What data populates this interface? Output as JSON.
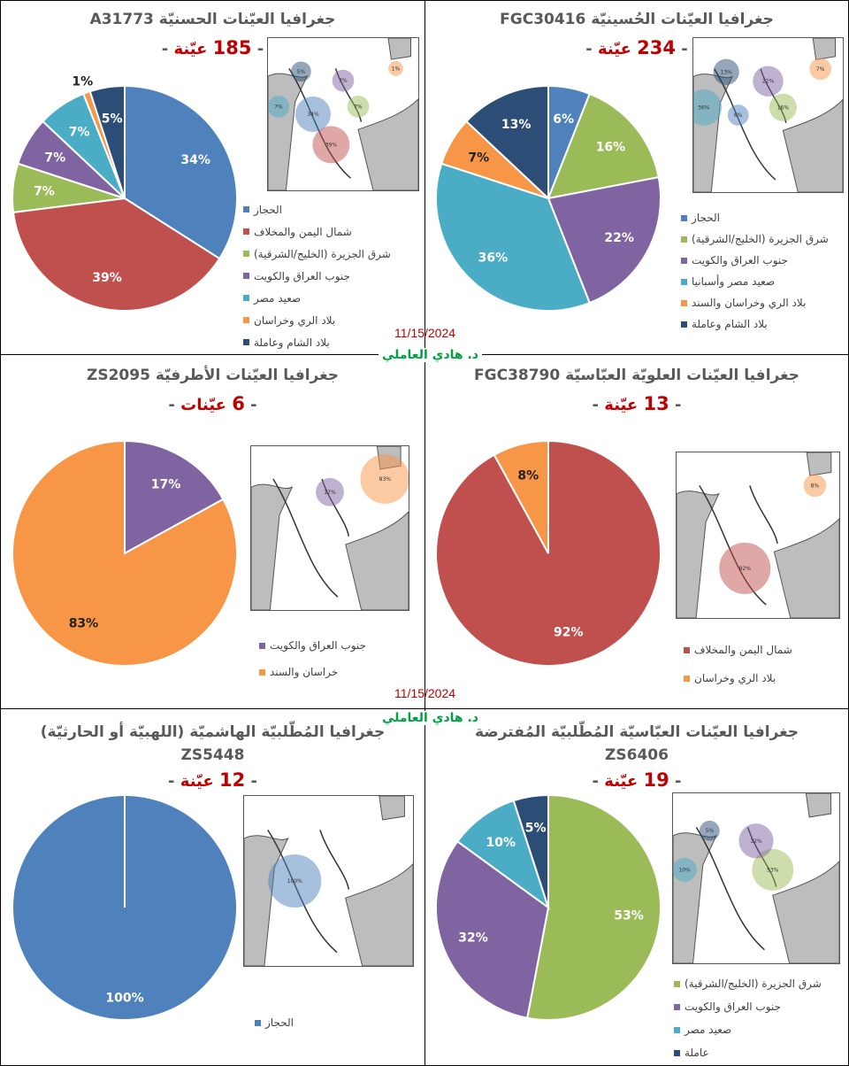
{
  "colors": {
    "hijaz": "#4F81BD",
    "yemen": "#C0504D",
    "east": "#9BBB59",
    "iraq": "#8064A2",
    "egypt": "#4BACC6",
    "ray": "#F79646",
    "sham": "#2C4D75"
  },
  "stamps": [
    {
      "date": "11/15/2024",
      "author": "د. هادي العاملي"
    },
    {
      "date": "11/15/2024",
      "author": "د. هادي العاملي"
    }
  ],
  "chart_data": [
    {
      "type": "pie",
      "title": "جغرافيا العيّنات الحسنيّة A31773",
      "count_label": {
        "dash_left": "-",
        "number": "185",
        "word": "عيّنة",
        "dash_right": "-"
      },
      "slices": [
        {
          "label": "الحجاز",
          "value": 34,
          "key": "hijaz"
        },
        {
          "label": "شمال اليمن والمخلاف",
          "value": 39,
          "key": "yemen"
        },
        {
          "label": "شرق الجزيرة (الخليج/الشرقية)",
          "value": 7,
          "key": "east"
        },
        {
          "label": "جنوب العراق والكويت",
          "value": 7,
          "key": "iraq"
        },
        {
          "label": "صعيد مصر",
          "value": 7,
          "key": "egypt"
        },
        {
          "label": "بلاد الري وخراسان",
          "value": 1,
          "key": "ray"
        },
        {
          "label": "بلاد الشام وعاملة",
          "value": 5,
          "key": "sham"
        }
      ]
    },
    {
      "type": "pie",
      "title": "جغرافيا العيّنات الحُسينيّة FGC30416",
      "count_label": {
        "dash_left": "-",
        "number": "234",
        "word": "عيّنة",
        "dash_right": "-"
      },
      "slices": [
        {
          "label": "الحجاز",
          "value": 6,
          "key": "hijaz"
        },
        {
          "label": "شرق الجزيرة (الخليج/الشرقية)",
          "value": 16,
          "key": "east"
        },
        {
          "label": "جنوب العراق والكويت",
          "value": 22,
          "key": "iraq"
        },
        {
          "label": "صعيد مصر وأسبانيا",
          "value": 36,
          "key": "egypt"
        },
        {
          "label": "بلاد الري وخراسان والسند",
          "value": 7,
          "key": "ray"
        },
        {
          "label": "بلاد الشام وعاملة",
          "value": 13,
          "key": "sham"
        }
      ]
    },
    {
      "type": "pie",
      "title": "جغرافيا العيّنات الأطرفيّة ZS2095",
      "count_label": {
        "dash_left": "-",
        "number": "6",
        "word": "عيّنات",
        "dash_right": "-"
      },
      "slices": [
        {
          "label": "جنوب العراق والكويت",
          "value": 17,
          "key": "iraq"
        },
        {
          "label": "خراسان والسند",
          "value": 83,
          "key": "ray"
        }
      ]
    },
    {
      "type": "pie",
      "title": "جغرافيا العيّنات العلويّة العبّاسيّة FGC38790",
      "count_label": {
        "dash_left": "-",
        "number": "13",
        "word": "عيّنة",
        "dash_right": "-"
      },
      "slices": [
        {
          "label": "شمال اليمن والمخلاف",
          "value": 92,
          "key": "yemen"
        },
        {
          "label": "بلاد الري وخراسان",
          "value": 8,
          "key": "ray"
        }
      ]
    },
    {
      "type": "pie",
      "title": "جغرافيا المُطّلبيّة الهاشميّة (اللهبيّة أو الحارثيّة)",
      "subtitle": "ZS5448",
      "count_label": {
        "dash_left": "-",
        "number": "12",
        "word": "عيّنة",
        "dash_right": "-"
      },
      "slices": [
        {
          "label": "الحجاز",
          "value": 100,
          "key": "hijaz"
        }
      ]
    },
    {
      "type": "pie",
      "title": "جغرافيا العيّنات العبّاسيّة المُطّلبيّة المُفترضة",
      "subtitle": "ZS6406",
      "count_label": {
        "dash_left": "-",
        "number": "19",
        "word": "عيّنة",
        "dash_right": "-"
      },
      "slices": [
        {
          "label": "شرق الجزيرة (الخليج/الشرقية)",
          "value": 53,
          "key": "east"
        },
        {
          "label": "جنوب العراق والكويت",
          "value": 32,
          "key": "iraq"
        },
        {
          "label": "صعيد مصر",
          "value": 10,
          "key": "egypt"
        },
        {
          "label": "عاملة",
          "value": 5,
          "key": "sham"
        }
      ]
    }
  ]
}
